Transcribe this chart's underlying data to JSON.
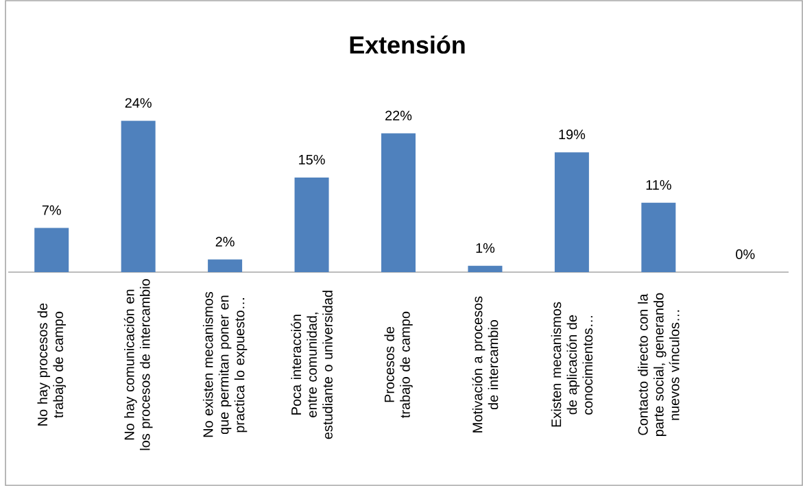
{
  "chart_data": {
    "type": "bar",
    "title": "Extensión",
    "categories": [
      "No hay procesos de trabajo de campo",
      "No hay comunicación en los procesos de intercambio",
      "No existen mecanismos que permitan poner en practica lo expuesto…",
      "Poca interacción entre comunidad, estudiante o universidad",
      "Procesos de trabajo de campo",
      "Motivación a procesos de intercambio",
      "Existen mecanismos de aplicación de conocimientos…",
      "Contacto directo con la parte social, generando nuevos vínculos…",
      null
    ],
    "values": [
      7,
      24,
      2,
      15,
      22,
      1,
      19,
      11,
      0
    ],
    "value_labels": [
      "7%",
      "24%",
      "2%",
      "15%",
      "22%",
      "1%",
      "19%",
      "11%",
      "0%"
    ],
    "color": "#4f81bd"
  }
}
